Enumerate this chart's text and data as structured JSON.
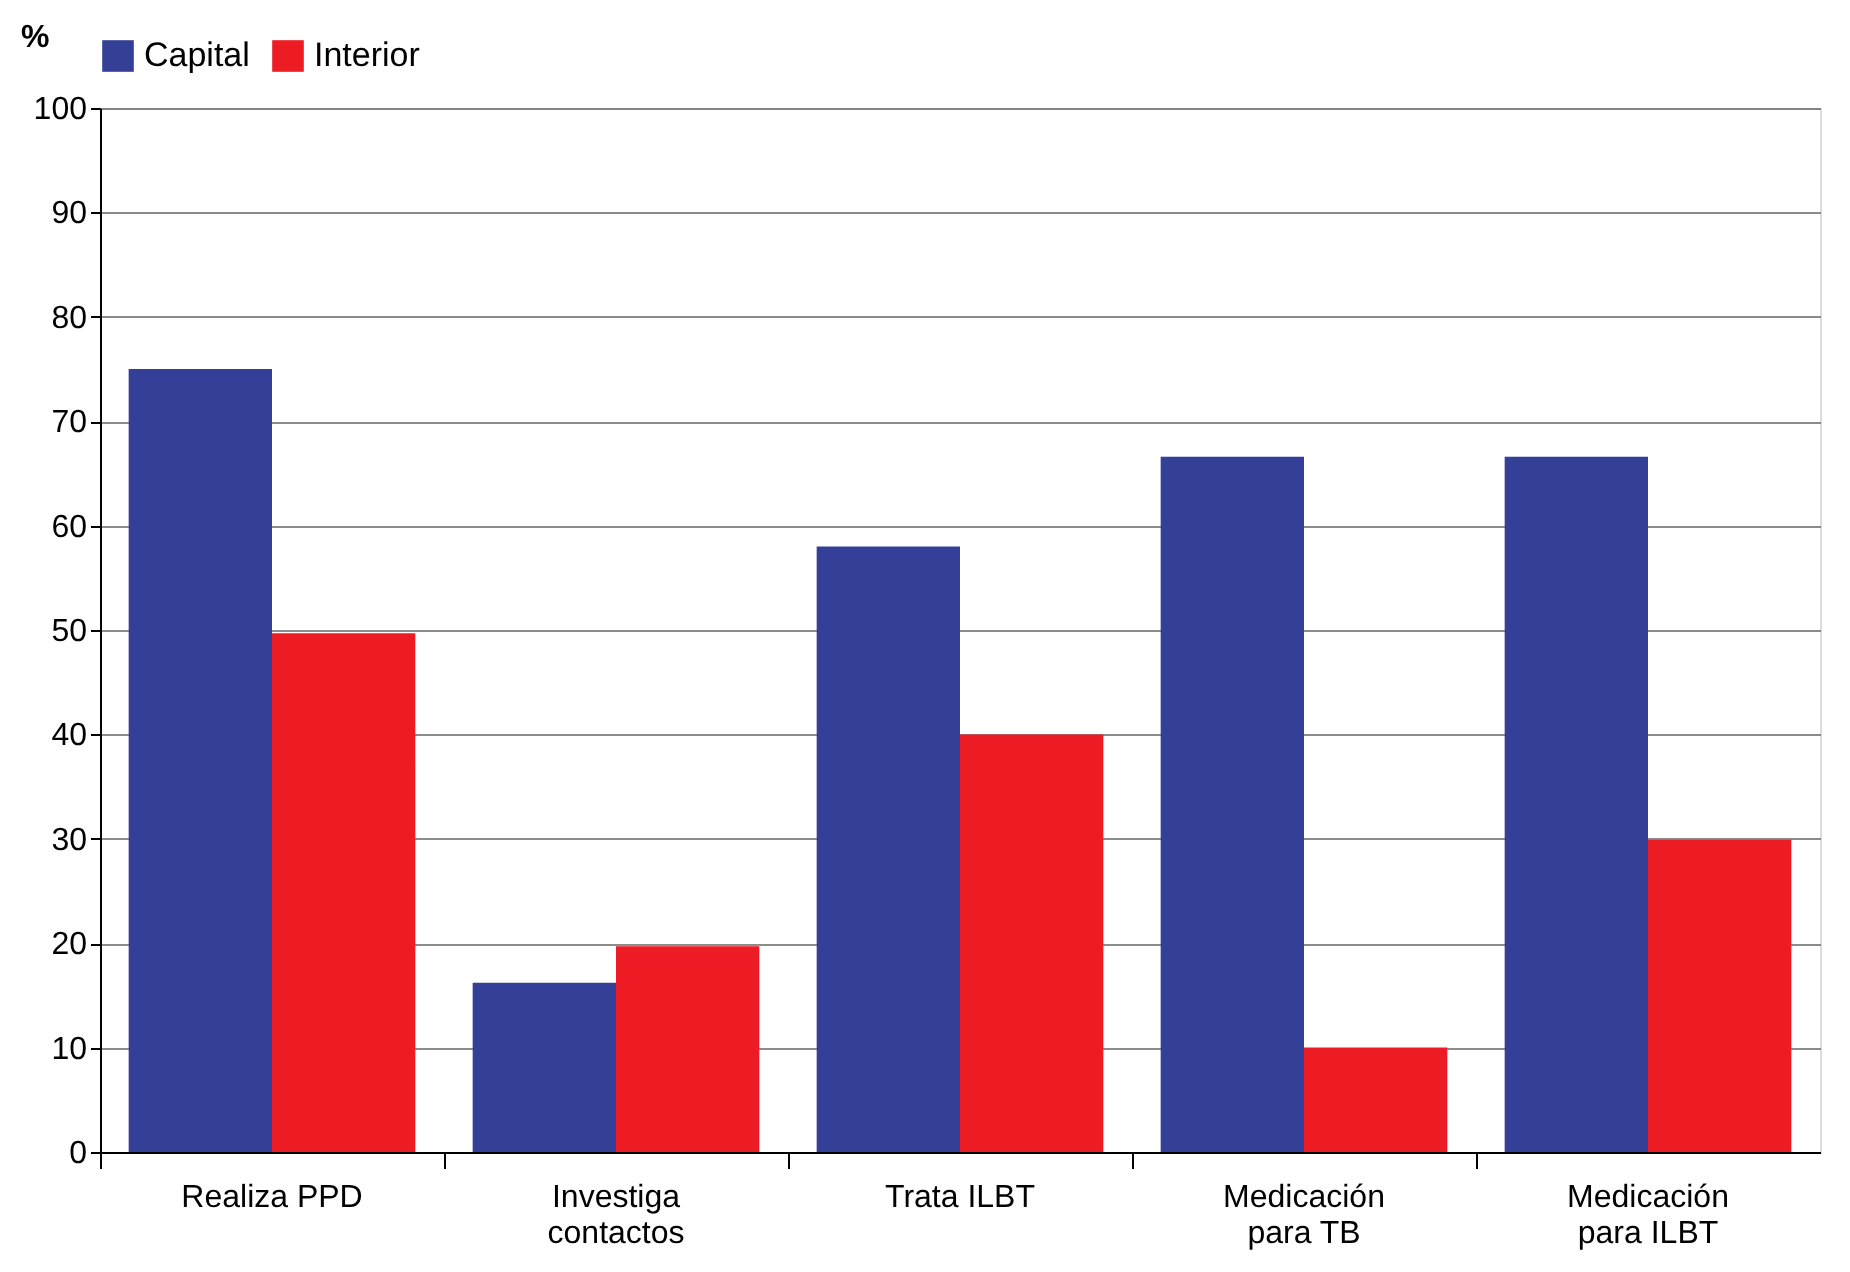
{
  "chart_data": {
    "type": "bar",
    "ylabel": "%",
    "categories": [
      "Realiza PPD",
      "Investiga contactos",
      "Trata ILBT",
      "Medicación para TB",
      "Medicación para ILBT"
    ],
    "series": [
      {
        "name": "Capital",
        "color": "#343f98",
        "values": [
          75,
          16.2,
          58,
          66.6,
          66.6
        ]
      },
      {
        "name": "Interior",
        "color": "#ed1c24",
        "values": [
          49.7,
          19.7,
          40,
          10,
          29.9
        ]
      }
    ],
    "ylim": [
      0,
      100
    ],
    "yticks": [
      0,
      10,
      20,
      30,
      40,
      50,
      60,
      70,
      80,
      90,
      100
    ],
    "grid": "y",
    "legend": "top"
  }
}
